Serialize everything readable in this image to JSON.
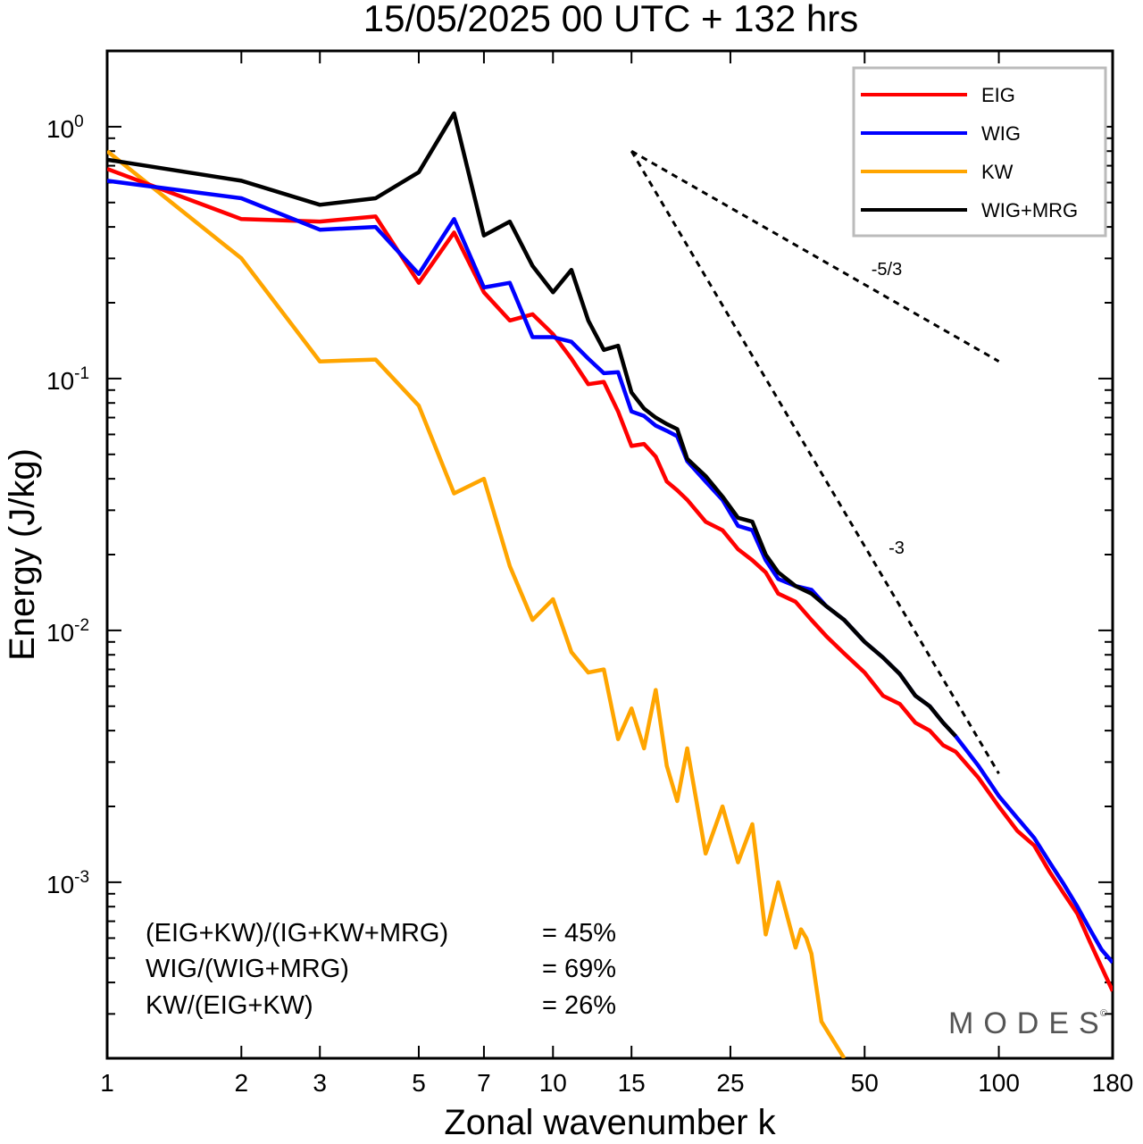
{
  "chart_data": {
    "type": "line",
    "title": "15/05/2025  00 UTC  + 132 hrs",
    "xlabel": "Zonal wavenumber k",
    "ylabel": "Energy (J/kg)",
    "xscale": "log",
    "yscale": "log",
    "xlim": [
      1,
      180
    ],
    "ylim": [
      0.0002,
      2.0
    ],
    "xticks": [
      1,
      2,
      3,
      5,
      7,
      10,
      15,
      25,
      50,
      100,
      180
    ],
    "xtick_labels": [
      "1",
      "2",
      "3",
      "5",
      "7",
      "10",
      "15",
      "25",
      "50",
      "100",
      "180"
    ],
    "yticks": [
      {
        "value": 1,
        "base": "10",
        "exp": "0"
      },
      {
        "value": 0.1,
        "base": "10",
        "exp": "-1"
      },
      {
        "value": 0.01,
        "base": "10",
        "exp": "-2"
      },
      {
        "value": 0.001,
        "base": "10",
        "exp": "-3"
      }
    ],
    "grid": false,
    "legend_position": "top-right",
    "series": [
      {
        "name": "EIG",
        "color": "#ff0000",
        "x": [
          1,
          2,
          3,
          4,
          5,
          6,
          7,
          8,
          9,
          10,
          11,
          12,
          13,
          14,
          15,
          16,
          17,
          18,
          19,
          20,
          22,
          24,
          26,
          28,
          30,
          32,
          35,
          38,
          41,
          45,
          50,
          55,
          60,
          65,
          70,
          75,
          80,
          90,
          100,
          110,
          120,
          130,
          140,
          150,
          160,
          170,
          180
        ],
        "values": [
          0.68,
          0.43,
          0.42,
          0.44,
          0.24,
          0.38,
          0.22,
          0.17,
          0.18,
          0.15,
          0.12,
          0.095,
          0.097,
          0.074,
          0.054,
          0.055,
          0.049,
          0.039,
          0.036,
          0.033,
          0.027,
          0.025,
          0.021,
          0.019,
          0.017,
          0.014,
          0.013,
          0.011,
          0.0095,
          0.0081,
          0.0068,
          0.0055,
          0.0051,
          0.0043,
          0.004,
          0.0035,
          0.0033,
          0.0026,
          0.002,
          0.0016,
          0.0014,
          0.0011,
          0.0009,
          0.00075,
          0.00058,
          0.00046,
          0.00037
        ]
      },
      {
        "name": "WIG",
        "color": "#0000ff",
        "x": [
          1,
          2,
          3,
          4,
          5,
          6,
          7,
          8,
          9,
          10,
          11,
          12,
          13,
          14,
          15,
          16,
          17,
          18,
          19,
          20,
          22,
          24,
          26,
          28,
          30,
          32,
          35,
          38,
          41,
          45,
          50,
          55,
          60,
          65,
          70,
          75,
          80,
          90,
          100,
          110,
          120,
          130,
          140,
          150,
          160,
          170,
          180
        ],
        "values": [
          0.61,
          0.52,
          0.39,
          0.4,
          0.26,
          0.43,
          0.23,
          0.24,
          0.146,
          0.146,
          0.14,
          0.12,
          0.105,
          0.106,
          0.074,
          0.071,
          0.065,
          0.062,
          0.059,
          0.047,
          0.039,
          0.033,
          0.026,
          0.025,
          0.019,
          0.016,
          0.015,
          0.0145,
          0.0125,
          0.011,
          0.009,
          0.0078,
          0.0067,
          0.0055,
          0.005,
          0.0043,
          0.0038,
          0.0029,
          0.0022,
          0.0018,
          0.0015,
          0.0012,
          0.00098,
          0.0008,
          0.00065,
          0.00054,
          0.00048
        ]
      },
      {
        "name": "KW",
        "color": "#ffa500",
        "x": [
          1,
          2,
          3,
          4,
          5,
          6,
          7,
          8,
          9,
          10,
          11,
          12,
          13,
          14,
          15,
          16,
          17,
          18,
          19,
          20,
          22,
          24,
          26,
          28,
          30,
          32,
          35,
          36,
          37,
          38,
          40,
          45
        ],
        "values": [
          0.8,
          0.3,
          0.117,
          0.119,
          0.078,
          0.035,
          0.04,
          0.018,
          0.011,
          0.0133,
          0.0082,
          0.0068,
          0.007,
          0.0037,
          0.0049,
          0.0034,
          0.0058,
          0.0029,
          0.0021,
          0.0034,
          0.0013,
          0.002,
          0.0012,
          0.0017,
          0.00062,
          0.001,
          0.00055,
          0.00065,
          0.0006,
          0.00052,
          0.00028,
          0.0002
        ]
      },
      {
        "name": "WIG+MRG",
        "color": "#000000",
        "x": [
          1,
          2,
          3,
          4,
          5,
          6,
          7,
          8,
          9,
          10,
          11,
          12,
          13,
          14,
          15,
          16,
          17,
          18,
          19,
          20,
          22,
          24,
          26,
          28,
          30,
          32,
          35,
          38,
          41,
          45,
          50,
          55,
          60,
          65,
          70,
          75,
          80
        ],
        "values": [
          0.74,
          0.61,
          0.49,
          0.52,
          0.66,
          1.13,
          0.37,
          0.42,
          0.28,
          0.22,
          0.27,
          0.17,
          0.13,
          0.135,
          0.088,
          0.076,
          0.07,
          0.066,
          0.063,
          0.048,
          0.041,
          0.034,
          0.028,
          0.027,
          0.02,
          0.017,
          0.015,
          0.014,
          0.0125,
          0.011,
          0.009,
          0.0078,
          0.0067,
          0.0055,
          0.005,
          0.0043,
          0.0038
        ]
      }
    ],
    "reference_lines": [
      {
        "label": "-5/3",
        "x": [
          15,
          100
        ],
        "y": [
          0.8,
          0.117
        ]
      },
      {
        "label": "-3",
        "x": [
          15,
          100
        ],
        "y": [
          0.8,
          0.0027
        ]
      }
    ],
    "stats": [
      {
        "label": "(EIG+KW)/(IG+KW+MRG)",
        "value": "= 45%"
      },
      {
        "label": "WIG/(WIG+MRG)",
        "value": "= 69%"
      },
      {
        "label": "KW/(EIG+KW)",
        "value": "= 26%"
      }
    ],
    "watermark": "MODES",
    "watermark_symbol": "©"
  }
}
